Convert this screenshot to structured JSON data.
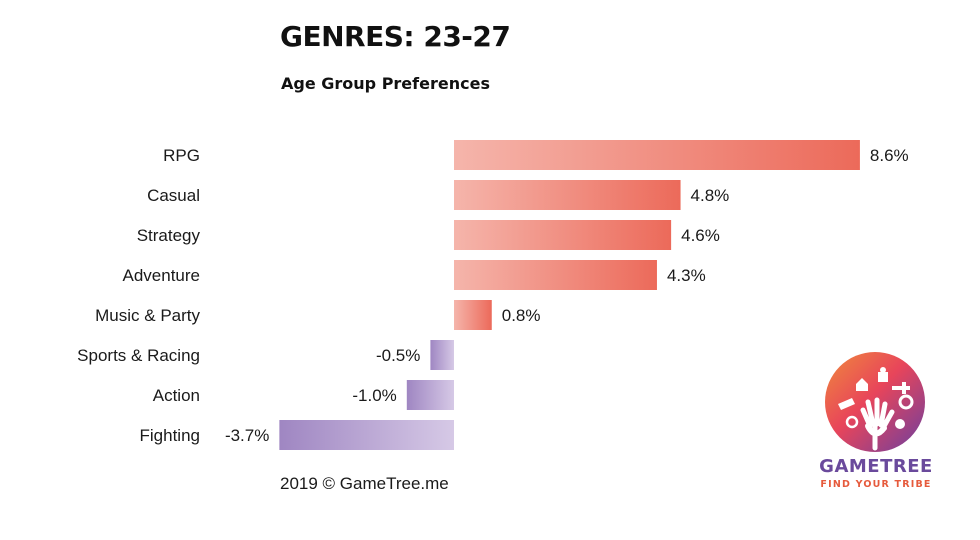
{
  "header": {
    "title": "GENRES: 23-27",
    "subtitle": "Age Group Preferences"
  },
  "footer": {
    "credit": "2019 © GameTree.me"
  },
  "logo": {
    "name": "GAMETREE",
    "tagline": "FIND YOUR TRIBE"
  },
  "colors": {
    "positive_dark": "#ec6a5a",
    "positive_light": "#f5b5ab",
    "negative_dark": "#9f86c2",
    "negative_light": "#d6c9e6"
  },
  "chart_data": {
    "type": "bar",
    "orientation": "horizontal",
    "categories": [
      "RPG",
      "Casual",
      "Strategy",
      "Adventure",
      "Music & Party",
      "Sports & Racing",
      "Action",
      "Fighting"
    ],
    "values": [
      8.6,
      4.8,
      4.6,
      4.3,
      0.8,
      -0.5,
      -1.0,
      -3.7
    ],
    "value_labels": [
      "8.6%",
      "4.8%",
      "4.6%",
      "4.3%",
      "0.8%",
      "-0.5%",
      "-1.0%",
      "-3.7%"
    ],
    "title": "GENRES: 23-27",
    "subtitle": "Age Group Preferences",
    "xlabel": "",
    "ylabel": "",
    "grid": false
  }
}
